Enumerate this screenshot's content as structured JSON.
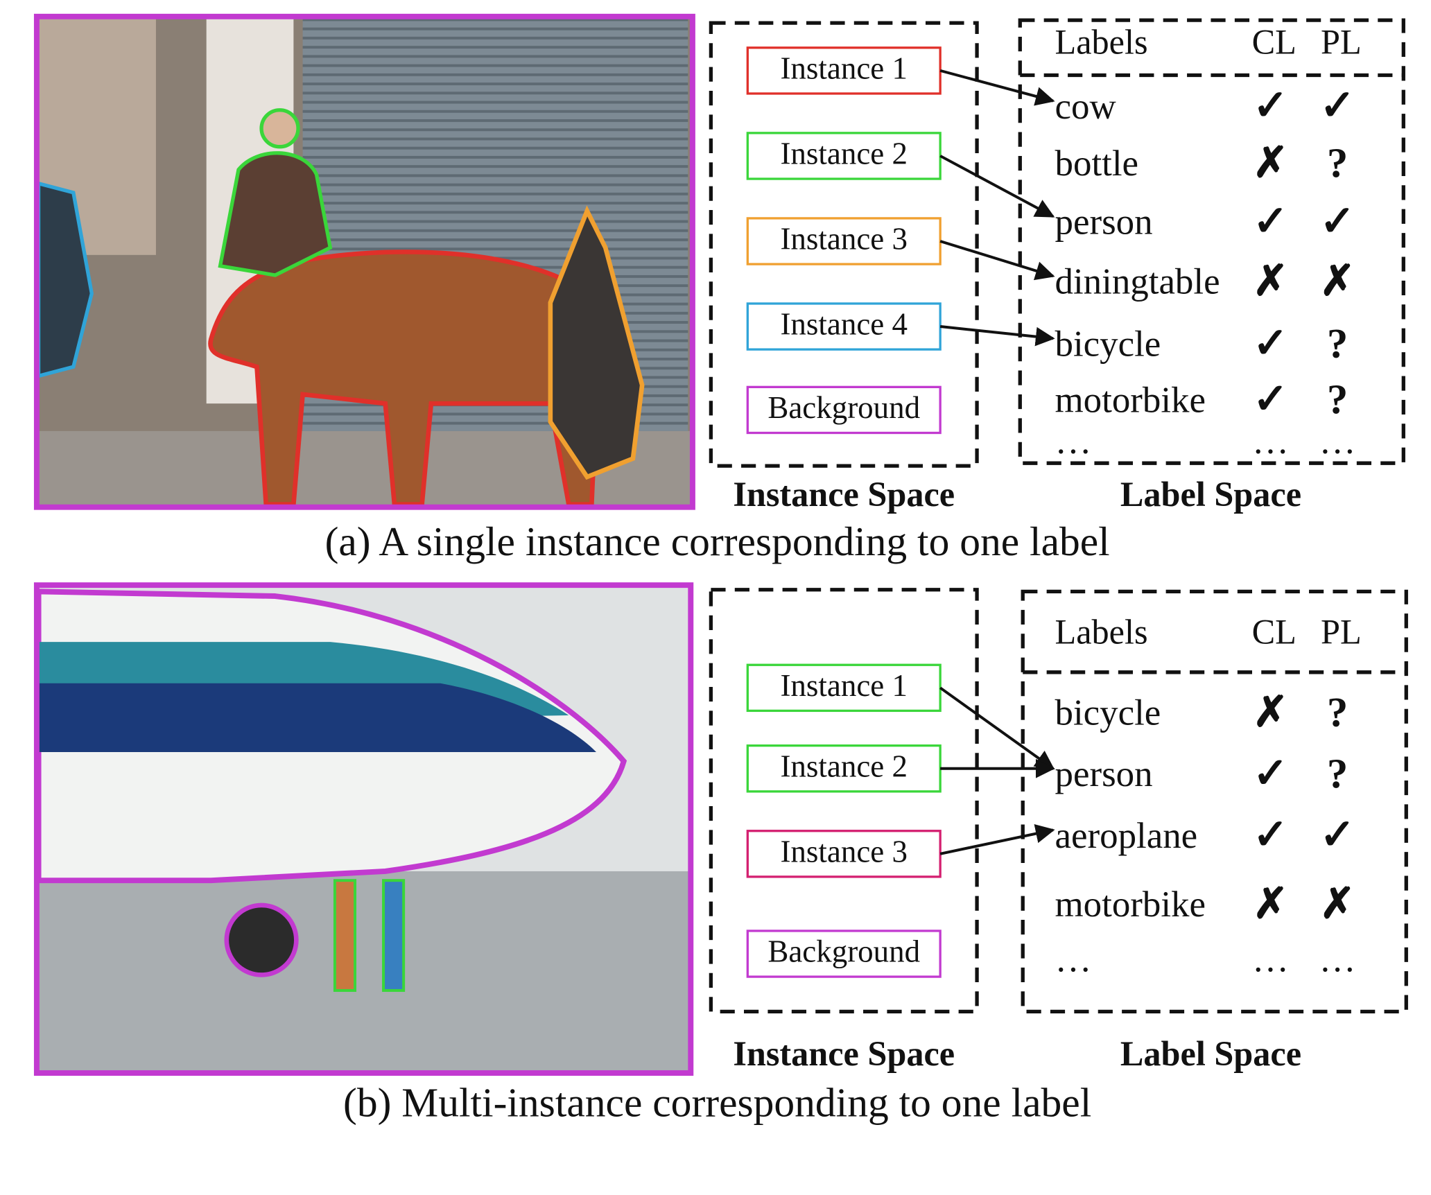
{
  "mark_colors": {
    "✓": "#474747",
    "✗": "#111111",
    "?": "#d61a1a"
  },
  "panels": [
    {
      "caption": "(a) A single instance corresponding to one label",
      "instance_space": "Instance Space",
      "label_space": "Label Space",
      "instances": [
        {
          "label": "Instance 1",
          "color": "#e0302a"
        },
        {
          "label": "Instance 2",
          "color": "#3ad63a"
        },
        {
          "label": "Instance 3",
          "color": "#f0a030"
        },
        {
          "label": "Instance 4",
          "color": "#30a4d8"
        },
        {
          "label": "Background",
          "color": "#c23ad0"
        }
      ],
      "header": [
        "Labels",
        "CL",
        "PL"
      ],
      "rows": [
        [
          "cow",
          "✓",
          "✓"
        ],
        [
          "bottle",
          "✗",
          "?"
        ],
        [
          "person",
          "✓",
          "✓"
        ],
        [
          "diningtable",
          "✗",
          "✗"
        ],
        [
          "bicycle",
          "✓",
          "?"
        ],
        [
          "motorbike",
          "✓",
          "?"
        ],
        [
          "…",
          "…",
          "…"
        ]
      ]
    },
    {
      "caption": "(b) Multi-instance corresponding to one label",
      "instance_space": "Instance Space",
      "label_space": "Label Space",
      "instances": [
        {
          "label": "Instance 1",
          "color": "#3ad63a"
        },
        {
          "label": "Instance 2",
          "color": "#3ad63a"
        },
        {
          "label": "Instance 3",
          "color": "#d42070"
        },
        {
          "label": "Background",
          "color": "#c23ad0"
        }
      ],
      "header": [
        "Labels",
        "CL",
        "PL"
      ],
      "rows": [
        [
          "bicycle",
          "✗",
          "?"
        ],
        [
          "person",
          "✓",
          "?"
        ],
        [
          "aeroplane",
          "✓",
          "✓"
        ],
        [
          "motorbike",
          "✗",
          "✗"
        ],
        [
          "…",
          "…",
          "…"
        ]
      ]
    }
  ]
}
